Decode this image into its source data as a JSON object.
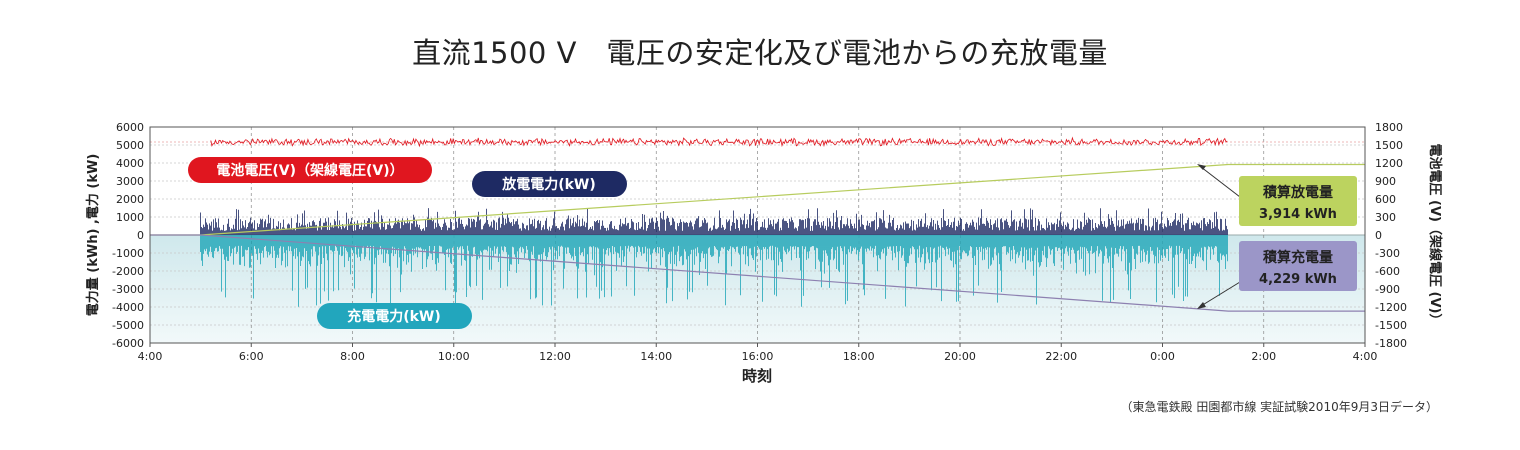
{
  "page": {
    "title": "直流1500 V　電圧の安定化及び電池からの充放電量",
    "source": "（東急電鉄殿 田園都市線 実証試験2010年9月3日データ）"
  },
  "chart_data": {
    "type": "line",
    "xlabel": "時刻",
    "ylabel_left": "電力量 (kWh) ,電力 (kW)",
    "ylabel_right": "電池電圧 (V)（架線電圧 (V)）",
    "x_ticks": [
      "4:00",
      "6:00",
      "8:00",
      "10:00",
      "12:00",
      "14:00",
      "16:00",
      "18:00",
      "20:00",
      "22:00",
      "0:00",
      "2:00",
      "4:00"
    ],
    "y_left_ticks": [
      6000,
      5000,
      4000,
      3000,
      2000,
      1000,
      0,
      -1000,
      -2000,
      -3000,
      -4000,
      -5000,
      -6000
    ],
    "y_right_ticks": [
      1800,
      1500,
      1200,
      900,
      600,
      300,
      0,
      -300,
      -600,
      -900,
      -1200,
      -1500,
      -1800
    ],
    "ylim_left": [
      -6000,
      6000
    ],
    "ylim_right": [
      -1800,
      1800
    ],
    "grid": true,
    "series": [
      {
        "name": "電池電圧(V)（架線電圧(V)）",
        "color": "#e0161f",
        "axis": "right",
        "base": 1550,
        "amplitude": 70,
        "start_hour": 5.2,
        "end_hour": 25.3
      },
      {
        "name": "放電電力(kW)",
        "color": "#1e2a63",
        "axis": "left",
        "peak": 1500,
        "start_hour": 5.0,
        "end_hour": 25.3
      },
      {
        "name": "充電電力(kW)",
        "color": "#1fa6b8",
        "axis": "left",
        "peak": -4000,
        "start_hour": 5.0,
        "end_hour": 25.3
      },
      {
        "name": "積算放電量",
        "color": "#b7cc5e",
        "axis": "left",
        "points": [
          [
            4,
            0
          ],
          [
            5,
            0
          ],
          [
            25.3,
            3914
          ],
          [
            28,
            3914
          ]
        ]
      },
      {
        "name": "積算充電量",
        "color": "#8d80b0",
        "axis": "left",
        "points": [
          [
            4,
            0
          ],
          [
            5,
            0
          ],
          [
            25.3,
            -4229
          ],
          [
            28,
            -4229
          ]
        ]
      }
    ],
    "labels": {
      "voltage": "電池電圧(V)（架線電圧(V)）",
      "discharge_power": "放電電力(kW)",
      "charge_power": "充電電力(kW)",
      "cum_discharge_title": "積算放電量",
      "cum_discharge_value": "3,914 kWh",
      "cum_charge_title": "積算充電量",
      "cum_charge_value": "4,229 kWh"
    },
    "colors": {
      "voltage_pill": "#e0161f",
      "discharge_pill": "#1e2a63",
      "charge_pill": "#22a6bd",
      "cum_discharge_box": "#bcd35f",
      "cum_charge_box": "#9b96c8",
      "charge_area": "#d6ecef"
    }
  }
}
